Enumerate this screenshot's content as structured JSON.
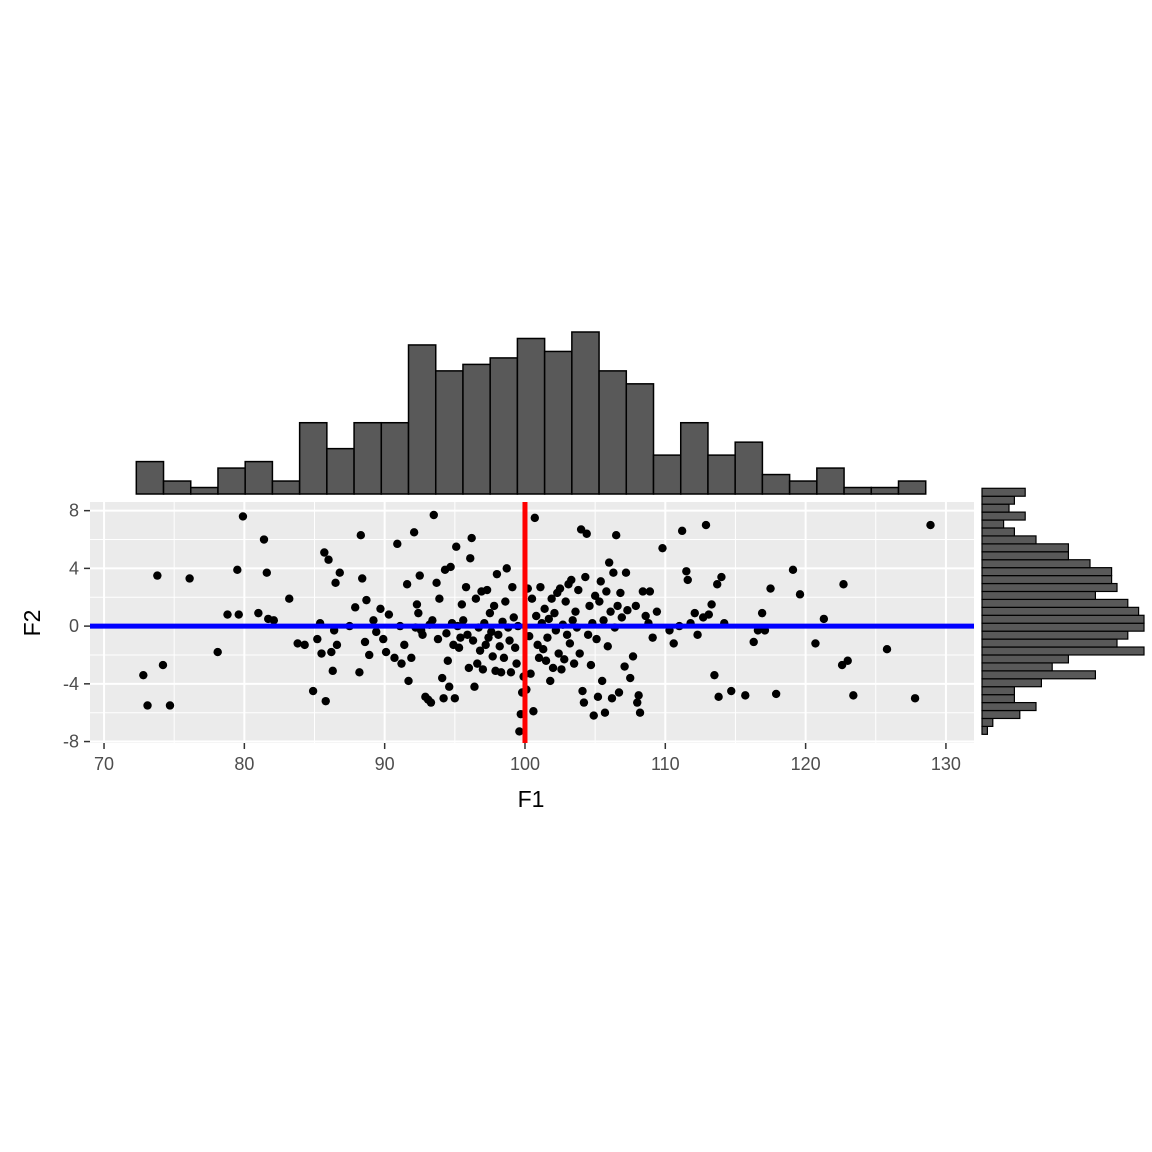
{
  "chart_data": {
    "type": "scatter",
    "xlabel": "F1",
    "ylabel": "F2",
    "xlim": [
      69,
      132
    ],
    "ylim": [
      -8.1,
      8.6
    ],
    "x_ticks": [
      "70",
      "80",
      "90",
      "100",
      "110",
      "120",
      "130"
    ],
    "y_ticks": [
      "8",
      "4",
      "0",
      "-4",
      "-8"
    ],
    "grid": true,
    "vline": {
      "x": 100,
      "color": "#ff0000"
    },
    "hline": {
      "y": 0,
      "color": "#0000ff"
    },
    "colors": {
      "panel": "#ebebeb",
      "grid": "#ffffff",
      "bar_fill": "#595959",
      "point": "#000000"
    },
    "points": [
      [
        72.8,
        -3.4
      ],
      [
        73.1,
        -5.5
      ],
      [
        73.8,
        3.5
      ],
      [
        74.2,
        -2.7
      ],
      [
        74.7,
        -5.5
      ],
      [
        76.1,
        3.3
      ],
      [
        78.1,
        -1.8
      ],
      [
        78.8,
        0.8
      ],
      [
        79.5,
        3.9
      ],
      [
        79.6,
        0.8
      ],
      [
        79.9,
        7.6
      ],
      [
        81.0,
        0.9
      ],
      [
        81.4,
        6.0
      ],
      [
        81.6,
        3.7
      ],
      [
        81.7,
        0.5
      ],
      [
        82.1,
        0.4
      ],
      [
        83.2,
        1.9
      ],
      [
        83.8,
        -1.2
      ],
      [
        84.3,
        -1.3
      ],
      [
        84.9,
        -4.5
      ],
      [
        85.2,
        -0.9
      ],
      [
        85.4,
        0.2
      ],
      [
        85.5,
        -1.9
      ],
      [
        85.7,
        5.1
      ],
      [
        85.8,
        -5.2
      ],
      [
        86.0,
        4.6
      ],
      [
        86.2,
        -1.8
      ],
      [
        86.3,
        -3.1
      ],
      [
        86.4,
        -0.3
      ],
      [
        86.5,
        3.0
      ],
      [
        86.6,
        -1.3
      ],
      [
        86.8,
        3.7
      ],
      [
        87.5,
        0.0
      ],
      [
        87.9,
        1.3
      ],
      [
        88.2,
        -3.2
      ],
      [
        88.3,
        6.3
      ],
      [
        88.4,
        3.3
      ],
      [
        88.6,
        -1.1
      ],
      [
        88.7,
        1.8
      ],
      [
        88.9,
        -2.0
      ],
      [
        89.2,
        0.4
      ],
      [
        89.4,
        -0.4
      ],
      [
        89.7,
        1.2
      ],
      [
        89.9,
        -0.9
      ],
      [
        90.1,
        -1.8
      ],
      [
        90.3,
        0.8
      ],
      [
        90.7,
        -2.2
      ],
      [
        90.9,
        5.7
      ],
      [
        91.1,
        0.0
      ],
      [
        91.2,
        -2.6
      ],
      [
        91.4,
        -1.3
      ],
      [
        91.6,
        2.9
      ],
      [
        91.7,
        -3.8
      ],
      [
        91.9,
        -2.2
      ],
      [
        92.1,
        6.5
      ],
      [
        92.2,
        -0.1
      ],
      [
        92.3,
        1.5
      ],
      [
        92.4,
        0.9
      ],
      [
        92.5,
        3.5
      ],
      [
        92.6,
        -0.3
      ],
      [
        92.7,
        -0.6
      ],
      [
        92.9,
        -4.9
      ],
      [
        93.1,
        -5.1
      ],
      [
        93.2,
        0.1
      ],
      [
        93.3,
        -5.3
      ],
      [
        93.4,
        0.4
      ],
      [
        93.5,
        7.7
      ],
      [
        93.7,
        3.0
      ],
      [
        93.8,
        -0.9
      ],
      [
        93.9,
        1.9
      ],
      [
        94.1,
        -3.6
      ],
      [
        94.2,
        -5.0
      ],
      [
        94.3,
        3.9
      ],
      [
        94.4,
        -0.5
      ],
      [
        94.5,
        -2.4
      ],
      [
        94.6,
        -4.2
      ],
      [
        94.7,
        4.1
      ],
      [
        94.8,
        0.2
      ],
      [
        94.9,
        -1.3
      ],
      [
        95.0,
        -5.0
      ],
      [
        95.1,
        5.5
      ],
      [
        95.2,
        0.0
      ],
      [
        95.3,
        -1.5
      ],
      [
        95.4,
        -0.8
      ],
      [
        95.5,
        1.5
      ],
      [
        95.6,
        0.4
      ],
      [
        95.8,
        2.7
      ],
      [
        95.9,
        -0.6
      ],
      [
        96.0,
        -2.9
      ],
      [
        96.1,
        4.7
      ],
      [
        96.2,
        6.1
      ],
      [
        96.3,
        -1.0
      ],
      [
        96.4,
        -4.2
      ],
      [
        96.5,
        1.9
      ],
      [
        96.6,
        -2.6
      ],
      [
        96.7,
        -0.1
      ],
      [
        96.8,
        -1.7
      ],
      [
        96.9,
        2.4
      ],
      [
        97.0,
        -3.0
      ],
      [
        97.1,
        0.2
      ],
      [
        97.2,
        -1.3
      ],
      [
        97.3,
        2.5
      ],
      [
        97.4,
        -0.8
      ],
      [
        97.5,
        0.9
      ],
      [
        97.6,
        -0.4
      ],
      [
        97.7,
        -2.1
      ],
      [
        97.8,
        1.4
      ],
      [
        97.9,
        -3.1
      ],
      [
        98.0,
        3.6
      ],
      [
        98.1,
        -0.6
      ],
      [
        98.2,
        -1.4
      ],
      [
        98.3,
        -3.2
      ],
      [
        98.4,
        0.3
      ],
      [
        98.5,
        -2.2
      ],
      [
        98.6,
        1.7
      ],
      [
        98.7,
        4.0
      ],
      [
        98.8,
        -0.1
      ],
      [
        98.9,
        -1.0
      ],
      [
        99.0,
        -3.2
      ],
      [
        99.1,
        2.7
      ],
      [
        99.2,
        0.6
      ],
      [
        99.3,
        -1.5
      ],
      [
        99.4,
        -2.6
      ],
      [
        99.5,
        0.0
      ],
      [
        99.6,
        -7.3
      ],
      [
        99.7,
        -6.1
      ],
      [
        99.8,
        -4.6
      ],
      [
        99.9,
        -3.5
      ],
      [
        100.1,
        -4.4
      ],
      [
        100.2,
        2.6
      ],
      [
        100.3,
        -0.7
      ],
      [
        100.4,
        -3.3
      ],
      [
        100.5,
        1.9
      ],
      [
        100.6,
        -5.9
      ],
      [
        100.7,
        7.5
      ],
      [
        100.8,
        0.7
      ],
      [
        100.9,
        -1.3
      ],
      [
        101.0,
        -2.2
      ],
      [
        101.1,
        2.7
      ],
      [
        101.2,
        0.2
      ],
      [
        101.3,
        -1.6
      ],
      [
        101.4,
        1.2
      ],
      [
        101.5,
        -2.4
      ],
      [
        101.6,
        -0.8
      ],
      [
        101.7,
        0.5
      ],
      [
        101.8,
        -3.8
      ],
      [
        101.9,
        1.9
      ],
      [
        102.0,
        -2.9
      ],
      [
        102.1,
        0.9
      ],
      [
        102.2,
        -0.3
      ],
      [
        102.3,
        2.3
      ],
      [
        102.4,
        -1.9
      ],
      [
        102.5,
        2.6
      ],
      [
        102.6,
        -3.0
      ],
      [
        102.7,
        0.1
      ],
      [
        102.8,
        -2.3
      ],
      [
        102.9,
        1.7
      ],
      [
        103.0,
        -0.6
      ],
      [
        103.1,
        2.9
      ],
      [
        103.2,
        -1.2
      ],
      [
        103.3,
        3.2
      ],
      [
        103.4,
        0.4
      ],
      [
        103.5,
        -2.6
      ],
      [
        103.6,
        1.0
      ],
      [
        103.7,
        -0.1
      ],
      [
        103.8,
        2.5
      ],
      [
        103.9,
        -1.9
      ],
      [
        104.0,
        6.7
      ],
      [
        104.1,
        -4.5
      ],
      [
        104.2,
        -5.3
      ],
      [
        104.3,
        3.4
      ],
      [
        104.4,
        6.4
      ],
      [
        104.5,
        -0.6
      ],
      [
        104.6,
        1.4
      ],
      [
        104.7,
        -2.7
      ],
      [
        104.8,
        0.2
      ],
      [
        104.9,
        -6.2
      ],
      [
        105.0,
        2.1
      ],
      [
        105.1,
        -0.9
      ],
      [
        105.2,
        -4.9
      ],
      [
        105.3,
        1.7
      ],
      [
        105.4,
        3.1
      ],
      [
        105.5,
        -3.8
      ],
      [
        105.6,
        0.4
      ],
      [
        105.7,
        -6.0
      ],
      [
        105.8,
        2.4
      ],
      [
        105.9,
        -1.4
      ],
      [
        106.0,
        4.4
      ],
      [
        106.1,
        1.0
      ],
      [
        106.2,
        -5.0
      ],
      [
        106.3,
        3.7
      ],
      [
        106.4,
        -0.1
      ],
      [
        106.5,
        6.3
      ],
      [
        106.6,
        1.4
      ],
      [
        106.7,
        -4.6
      ],
      [
        106.8,
        2.3
      ],
      [
        106.9,
        0.6
      ],
      [
        107.1,
        -2.8
      ],
      [
        107.2,
        3.7
      ],
      [
        107.3,
        1.1
      ],
      [
        107.5,
        -3.6
      ],
      [
        107.7,
        -2.1
      ],
      [
        107.9,
        1.4
      ],
      [
        108.0,
        -5.3
      ],
      [
        108.1,
        -4.8
      ],
      [
        108.2,
        -6.0
      ],
      [
        108.4,
        2.4
      ],
      [
        108.6,
        0.7
      ],
      [
        108.8,
        0.2
      ],
      [
        108.9,
        2.4
      ],
      [
        109.1,
        -0.8
      ],
      [
        109.4,
        1.0
      ],
      [
        109.8,
        5.4
      ],
      [
        110.3,
        -0.3
      ],
      [
        110.6,
        -1.2
      ],
      [
        111.0,
        0.0
      ],
      [
        111.2,
        6.6
      ],
      [
        111.5,
        3.8
      ],
      [
        111.6,
        3.2
      ],
      [
        111.8,
        0.2
      ],
      [
        112.1,
        0.9
      ],
      [
        112.3,
        -0.6
      ],
      [
        112.7,
        0.6
      ],
      [
        112.9,
        7.0
      ],
      [
        113.1,
        0.8
      ],
      [
        113.3,
        1.5
      ],
      [
        113.5,
        -3.4
      ],
      [
        113.7,
        2.9
      ],
      [
        113.8,
        -4.9
      ],
      [
        114.0,
        3.4
      ],
      [
        114.2,
        0.2
      ],
      [
        114.7,
        -4.5
      ],
      [
        115.7,
        -4.8
      ],
      [
        116.3,
        -1.1
      ],
      [
        116.6,
        -0.3
      ],
      [
        116.9,
        0.9
      ],
      [
        117.1,
        -0.3
      ],
      [
        117.5,
        2.6
      ],
      [
        117.9,
        -4.7
      ],
      [
        119.1,
        3.9
      ],
      [
        119.6,
        2.2
      ],
      [
        120.7,
        -1.2
      ],
      [
        121.3,
        0.5
      ],
      [
        122.6,
        -2.7
      ],
      [
        122.7,
        2.9
      ],
      [
        123.0,
        -2.4
      ],
      [
        123.4,
        -4.8
      ],
      [
        125.8,
        -1.6
      ],
      [
        127.8,
        -5.0
      ],
      [
        128.9,
        7.0
      ]
    ],
    "x_hist": {
      "start": 72.3,
      "bin_width": 1.94,
      "counts": [
        5,
        2,
        1,
        4,
        5,
        2,
        11,
        7,
        11,
        11,
        23,
        19,
        20,
        21,
        24,
        22,
        25,
        19,
        17,
        6,
        11,
        6,
        8,
        3,
        2,
        4,
        1,
        1,
        2
      ]
    },
    "y_hist": {
      "start": -7.5,
      "bin_width": 0.55,
      "counts": [
        1,
        2,
        7,
        10,
        6,
        6,
        11,
        21,
        13,
        16,
        30,
        25,
        27,
        30,
        30,
        29,
        27,
        21,
        25,
        24,
        24,
        20,
        16,
        16,
        10,
        6,
        4,
        8,
        5,
        6,
        8
      ]
    }
  }
}
